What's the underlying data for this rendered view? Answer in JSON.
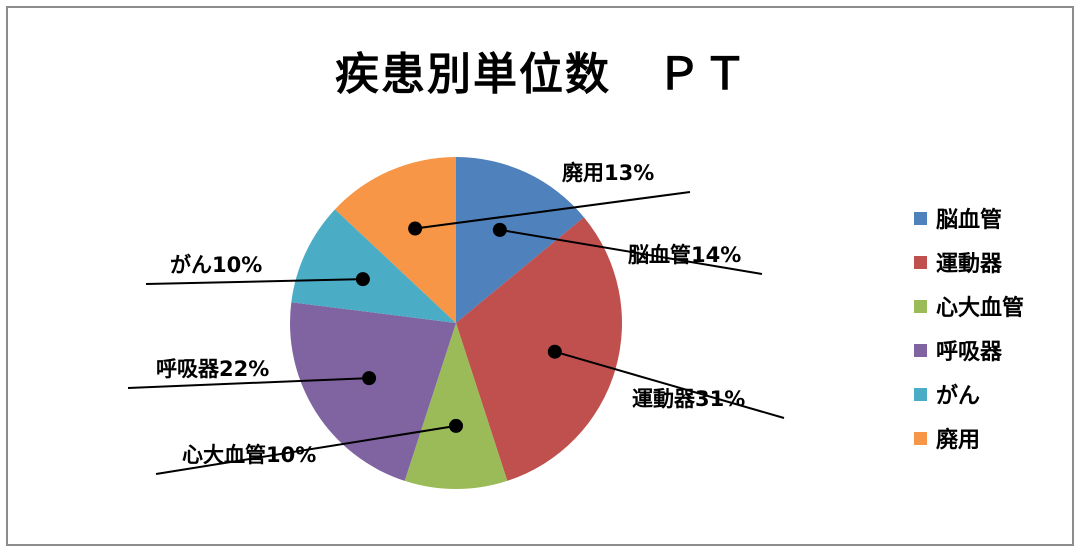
{
  "chart_data": {
    "type": "pie",
    "title": "疾患別単位数　ＰＴ",
    "categories": [
      "脳血管",
      "運動器",
      "心大血管",
      "呼吸器",
      "がん",
      "廃用"
    ],
    "values": [
      14,
      31,
      10,
      22,
      10,
      13
    ],
    "data_labels": [
      "脳血管14%",
      "運動器31%",
      "心大血管10%",
      "呼吸器22%",
      "がん10%",
      "廃用13%"
    ],
    "colors": [
      "#4F81BD",
      "#C0504D",
      "#9BBB59",
      "#8064A2",
      "#4BACC6",
      "#F79646"
    ],
    "legend_placement": "right"
  }
}
